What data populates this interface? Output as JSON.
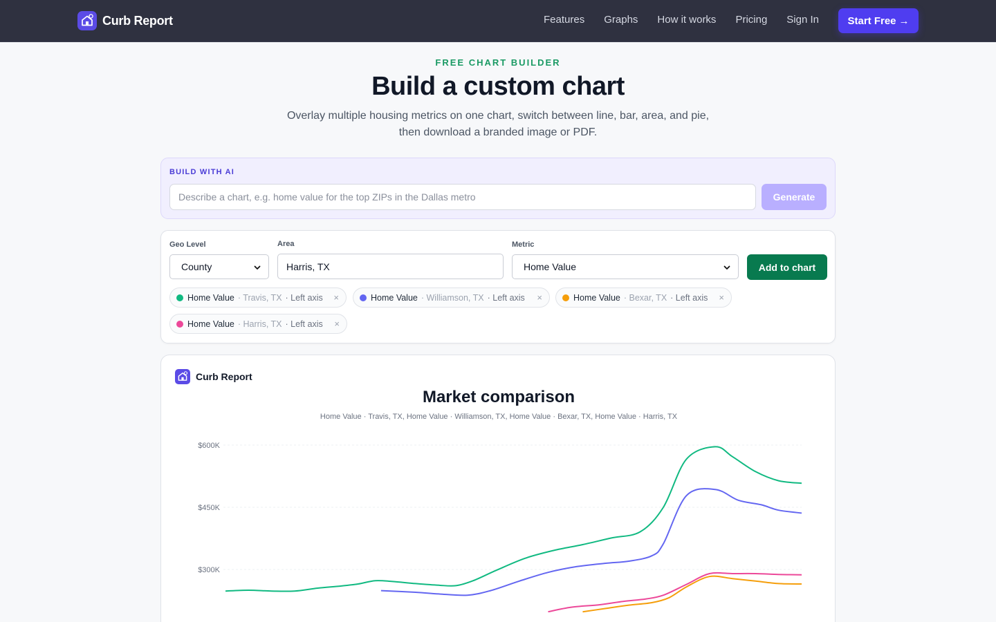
{
  "nav": {
    "brand": "Curb Report",
    "links": [
      "Features",
      "Graphs",
      "How it works",
      "Pricing",
      "Sign In"
    ],
    "cta": "Start Free",
    "cta_arrow": "→"
  },
  "hero": {
    "eyebrow": "FREE CHART BUILDER",
    "title": "Build a custom chart",
    "subtitle_line1": "Overlay multiple housing metrics on one chart, switch between line, bar, area, and pie,",
    "subtitle_line2": "then download a branded image or PDF."
  },
  "ai": {
    "label": "BUILD WITH AI",
    "placeholder": "Describe a chart, e.g. home value for the top ZIPs in the Dallas metro",
    "button": "Generate"
  },
  "controls": {
    "geo_label": "Geo Level",
    "geo_value": "County",
    "area_label": "Area",
    "area_value": "Harris, TX",
    "metric_label": "Metric",
    "metric_value": "Home Value",
    "add_button": "Add to chart"
  },
  "chips": [
    {
      "metric": "Home Value",
      "area": "· Travis, TX",
      "axis": "· Left axis",
      "color": "#10b981"
    },
    {
      "metric": "Home Value",
      "area": "· Williamson, TX",
      "axis": "· Left axis",
      "color": "#6366f1"
    },
    {
      "metric": "Home Value",
      "area": "· Bexar, TX",
      "axis": "· Left axis",
      "color": "#f59e0b"
    },
    {
      "metric": "Home Value",
      "area": "· Harris, TX",
      "axis": "· Left axis",
      "color": "#ec4899"
    }
  ],
  "chip_close": "×",
  "chart_card": {
    "brand": "Curb Report",
    "title": "Market comparison",
    "subtitle": "Home Value · Travis, TX, Home Value · Williamson, TX, Home Value · Bexar, TX, Home Value · Harris, TX"
  },
  "chart_data": {
    "type": "line",
    "title": "Market comparison",
    "subtitle": "Home Value · Travis, TX, Home Value · Williamson, TX, Home Value · Bexar, TX, Home Value · Harris, TX",
    "y_ticks": [
      {
        "value": 600000,
        "label": "$600K"
      },
      {
        "value": 450000,
        "label": "$450K"
      },
      {
        "value": 300000,
        "label": "$300K"
      }
    ],
    "grid": true,
    "x_start": 0,
    "x_end": 100,
    "series": [
      {
        "name": "Home Value · Travis, TX",
        "color": "#10b981",
        "points": [
          [
            0,
            248
          ],
          [
            4,
            250
          ],
          [
            8,
            248
          ],
          [
            12,
            248
          ],
          [
            16,
            255
          ],
          [
            20,
            260
          ],
          [
            23,
            265
          ],
          [
            26,
            273
          ],
          [
            29,
            271
          ],
          [
            33,
            266
          ],
          [
            37,
            262
          ],
          [
            40,
            261
          ],
          [
            43,
            273
          ],
          [
            47,
            298
          ],
          [
            52,
            327
          ],
          [
            57,
            346
          ],
          [
            62,
            360
          ],
          [
            67,
            376
          ],
          [
            72,
            391
          ],
          [
            76,
            450
          ],
          [
            80,
            566
          ],
          [
            85,
            596
          ],
          [
            88,
            572
          ],
          [
            92,
            536
          ],
          [
            96,
            514
          ],
          [
            100,
            508
          ]
        ]
      },
      {
        "name": "Home Value · Williamson, TX",
        "color": "#6366f1",
        "points": [
          [
            27,
            249
          ],
          [
            33,
            245
          ],
          [
            37,
            241
          ],
          [
            42,
            238
          ],
          [
            46,
            249
          ],
          [
            51,
            272
          ],
          [
            56,
            293
          ],
          [
            61,
            307
          ],
          [
            66,
            315
          ],
          [
            70,
            320
          ],
          [
            74,
            333
          ],
          [
            76,
            362
          ],
          [
            80,
            478
          ],
          [
            85,
            493
          ],
          [
            89,
            467
          ],
          [
            93,
            456
          ],
          [
            96,
            443
          ],
          [
            100,
            436
          ]
        ]
      },
      {
        "name": "Home Value · Bexar, TX",
        "color": "#f59e0b",
        "points": [
          [
            62,
            198
          ],
          [
            66,
            206
          ],
          [
            70,
            214
          ],
          [
            74,
            220
          ],
          [
            77,
            232
          ],
          [
            80,
            258
          ],
          [
            84,
            283
          ],
          [
            88,
            278
          ],
          [
            92,
            272
          ],
          [
            96,
            266
          ],
          [
            100,
            265
          ]
        ]
      },
      {
        "name": "Home Value · Harris, TX",
        "color": "#ec4899",
        "points": [
          [
            56,
            198
          ],
          [
            60,
            209
          ],
          [
            65,
            215
          ],
          [
            69,
            223
          ],
          [
            73,
            229
          ],
          [
            76,
            238
          ],
          [
            80,
            264
          ],
          [
            84,
            290
          ],
          [
            88,
            290
          ],
          [
            92,
            290
          ],
          [
            96,
            288
          ],
          [
            100,
            287
          ]
        ]
      }
    ]
  }
}
